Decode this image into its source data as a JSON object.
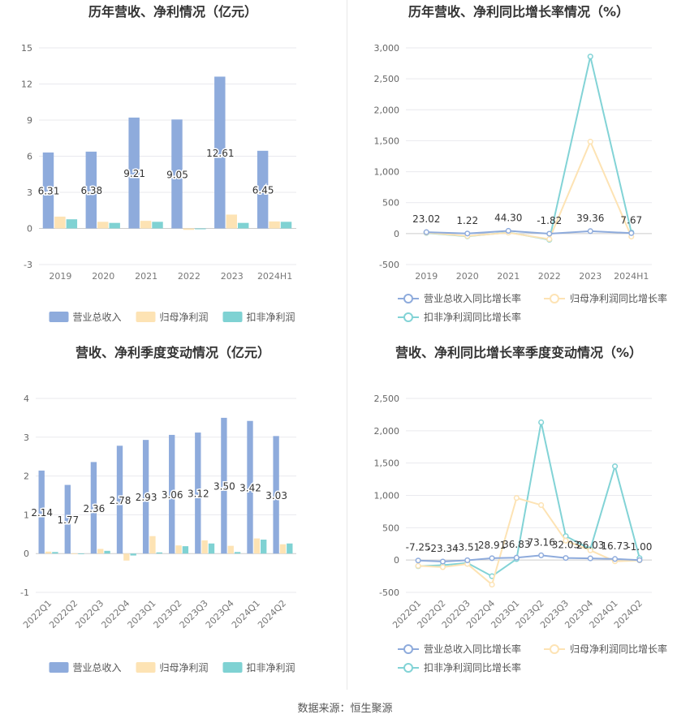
{
  "footer": {
    "source": "数据来源：恒生聚源"
  },
  "colors": {
    "revenue": "#8eabdc",
    "net_profit": "#fde3b4",
    "deducted_profit": "#7fd2d3",
    "revenue_line": "#8eabdc",
    "net_profit_line": "#fde3b4",
    "deducted_line": "#82d3d6"
  },
  "chart_data": [
    {
      "type": "bar",
      "title": "历年营收、净利情况（亿元）",
      "categories": [
        "2019",
        "2020",
        "2021",
        "2022",
        "2023",
        "2024H1"
      ],
      "series": [
        {
          "name": "营业总收入",
          "values": [
            6.31,
            6.38,
            9.21,
            9.05,
            12.61,
            6.45
          ]
        },
        {
          "name": "归母净利润",
          "values": [
            0.98,
            0.55,
            0.63,
            -0.12,
            1.15,
            0.58
          ]
        },
        {
          "name": "扣非净利润",
          "values": [
            0.76,
            0.46,
            0.55,
            -0.07,
            0.46,
            0.55
          ]
        }
      ],
      "data_labels": [
        "6.31",
        "6.38",
        "9.21",
        "9.05",
        "12.61",
        "6.45"
      ],
      "yticks": [
        "15",
        "12",
        "9",
        "6",
        "3",
        "0",
        "-3"
      ],
      "ylim": [
        -3,
        15
      ],
      "grid": true,
      "legend": "bottom"
    },
    {
      "type": "line",
      "title": "历年营收、净利同比增长率情况（%）",
      "categories": [
        "2019",
        "2020",
        "2021",
        "2022",
        "2023",
        "2024H1"
      ],
      "series": [
        {
          "name": "营业总收入同比增长率",
          "values": [
            23.02,
            1.22,
            44.3,
            -1.82,
            39.36,
            7.67
          ]
        },
        {
          "name": "归母净利润同比增长率",
          "values": [
            15,
            -40,
            15,
            -90,
            1485,
            -48
          ]
        },
        {
          "name": "扣非净利润同比增长率",
          "values": [
            10,
            -45,
            20,
            -100,
            2860,
            19
          ]
        }
      ],
      "data_labels": [
        "23.02",
        "1.22",
        "44.30",
        "-1.82",
        "39.36",
        "7.67"
      ],
      "yticks": [
        "3,000",
        "2,500",
        "2,000",
        "1,500",
        "1,000",
        "500",
        "0",
        "-500"
      ],
      "ylim": [
        -500,
        3000
      ],
      "grid": true,
      "legend": "bottom"
    },
    {
      "type": "bar",
      "title": "营收、净利季度变动情况（亿元）",
      "categories": [
        "2022Q1",
        "2022Q2",
        "2022Q3",
        "2022Q4",
        "2023Q1",
        "2023Q2",
        "2023Q3",
        "2023Q4",
        "2024Q1",
        "2024Q2"
      ],
      "series": [
        {
          "name": "营业总收入",
          "values": [
            2.14,
            1.77,
            2.36,
            2.78,
            2.93,
            3.06,
            3.12,
            3.5,
            3.42,
            3.03
          ]
        },
        {
          "name": "归母净利润",
          "values": [
            0.05,
            -0.01,
            0.12,
            -0.18,
            0.45,
            0.21,
            0.34,
            0.2,
            0.39,
            0.24
          ]
        },
        {
          "name": "扣非净利润",
          "values": [
            0.04,
            -0.01,
            0.07,
            -0.05,
            0.03,
            0.19,
            0.26,
            0.04,
            0.36,
            0.26
          ]
        }
      ],
      "data_labels": [
        "2.14",
        "1.77",
        "2.36",
        "2.78",
        "2.93",
        "3.06",
        "3.12",
        "3.50",
        "3.42",
        "3.03"
      ],
      "yticks": [
        "4",
        "3",
        "2",
        "1",
        "0",
        "-1"
      ],
      "ylim": [
        -1,
        4
      ],
      "grid": true,
      "legend": "bottom"
    },
    {
      "type": "line",
      "title": "营收、净利同比增长率季度变动情况（%）",
      "categories": [
        "2022Q1",
        "2022Q2",
        "2022Q3",
        "2022Q4",
        "2023Q1",
        "2023Q2",
        "2023Q3",
        "2023Q4",
        "2024Q1",
        "2024Q2"
      ],
      "series": [
        {
          "name": "营业总收入同比增长率",
          "values": [
            -7.25,
            -23.34,
            -3.51,
            28.91,
            36.83,
            73.16,
            32.03,
            26.03,
            16.73,
            -1.0
          ]
        },
        {
          "name": "归母净利润同比增长率",
          "values": [
            -90,
            -110,
            -60,
            -380,
            960,
            850,
            300,
            150,
            -20,
            -5
          ]
        },
        {
          "name": "扣非净利润同比增长率",
          "values": [
            -95,
            -80,
            -45,
            -250,
            15,
            2130,
            370,
            170,
            1450,
            30
          ]
        }
      ],
      "data_labels": [
        "-7.25",
        "-23.34",
        "-3.51",
        "28.91",
        "36.83",
        "73.16",
        "32.03",
        "26.03",
        "16.73",
        "-1.00"
      ],
      "yticks": [
        "2,500",
        "2,000",
        "1,500",
        "1,000",
        "500",
        "0",
        "-500"
      ],
      "ylim": [
        -500,
        2500
      ],
      "grid": true,
      "legend": "bottom"
    }
  ]
}
